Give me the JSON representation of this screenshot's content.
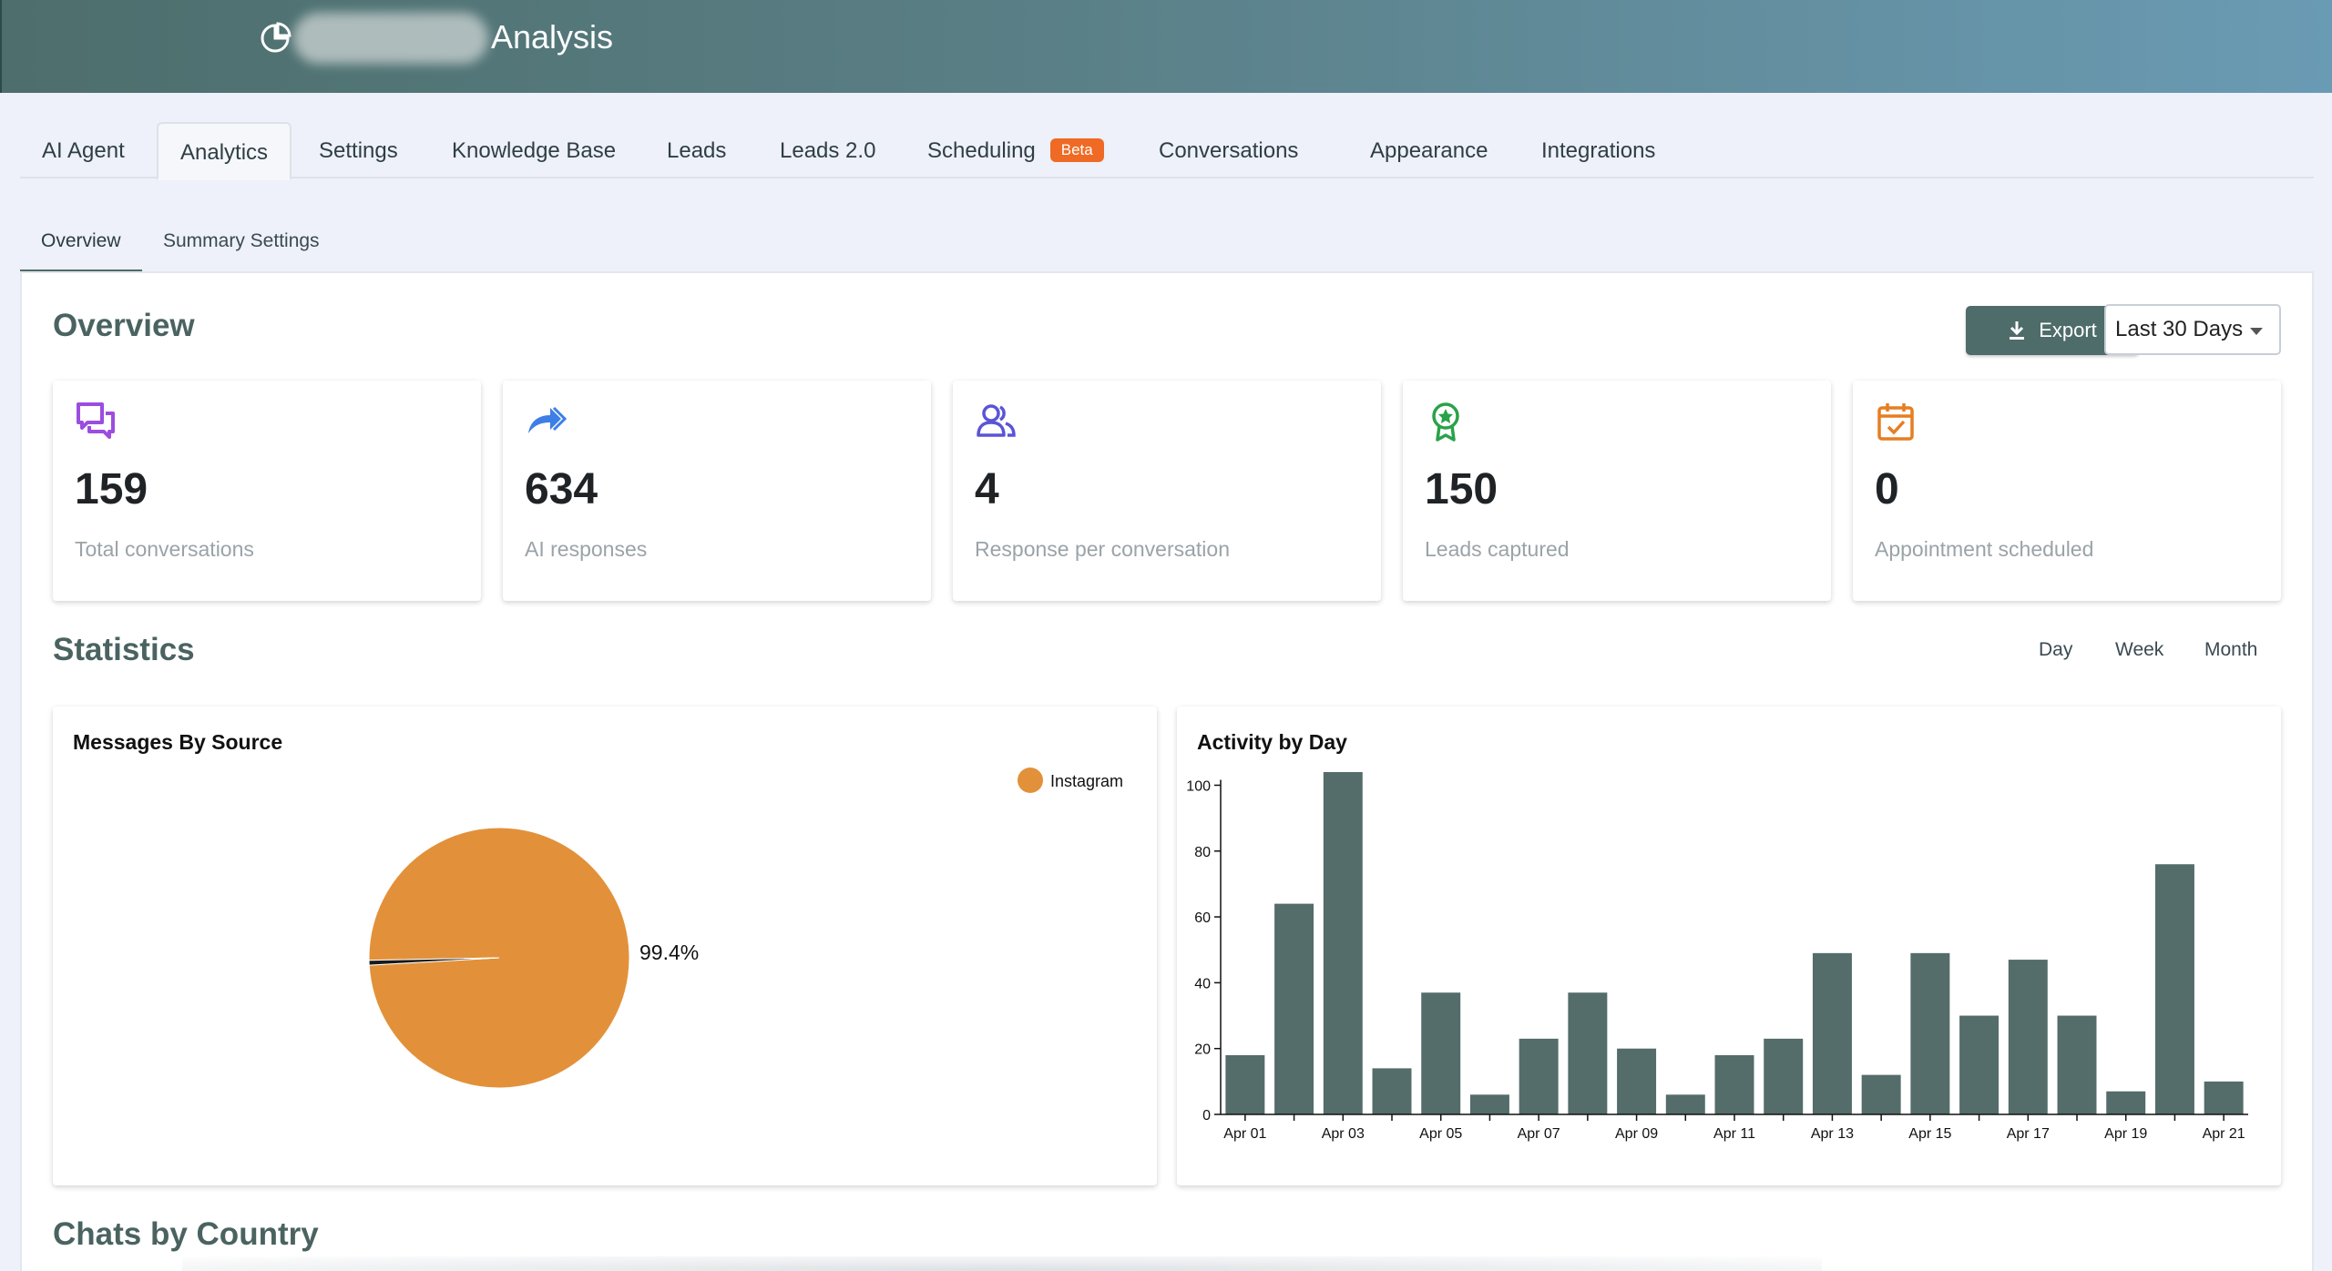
{
  "header": {
    "title": "Analysis",
    "icon": "pie-chart-icon"
  },
  "tabs": [
    {
      "label": "AI Agent"
    },
    {
      "label": "Analytics"
    },
    {
      "label": "Settings"
    },
    {
      "label": "Knowledge Base"
    },
    {
      "label": "Leads"
    },
    {
      "label": "Leads 2.0"
    },
    {
      "label": "Scheduling",
      "badge": "Beta"
    },
    {
      "label": "Conversations"
    },
    {
      "label": "Appearance"
    },
    {
      "label": "Integrations"
    }
  ],
  "subtabs": [
    {
      "label": "Overview"
    },
    {
      "label": "Summary Settings"
    }
  ],
  "overview": {
    "title": "Overview",
    "export_label": "Export",
    "range_label": "Last 30 Days",
    "stats": [
      {
        "value": "159",
        "label": "Total conversations",
        "icon": "chat-bubbles-icon",
        "color": "#9b4de0"
      },
      {
        "value": "634",
        "label": "AI responses",
        "icon": "forward-arrows-icon",
        "color": "#3d7fe6"
      },
      {
        "value": "4",
        "label": "Response per conversation",
        "icon": "users-icon",
        "color": "#5a55d6"
      },
      {
        "value": "150",
        "label": "Leads captured",
        "icon": "award-ribbon-icon",
        "color": "#2aa24a"
      },
      {
        "value": "0",
        "label": "Appointment scheduled",
        "icon": "calendar-check-icon",
        "color": "#e67e22"
      }
    ]
  },
  "statistics": {
    "title": "Statistics",
    "periods": [
      "Day",
      "Week",
      "Month"
    ]
  },
  "chats_by_country": {
    "title": "Chats by Country"
  },
  "colors": {
    "accent": "#4d6c6a",
    "pie": "#e2913a",
    "bar": "#546c6a",
    "badge": "#ef6a24"
  },
  "chart_data": [
    {
      "type": "pie",
      "title": "Messages By Source",
      "legend": [
        "Instagram"
      ],
      "legend_position": "top-right",
      "slices": [
        {
          "name": "Instagram",
          "value": 99.4,
          "color": "#e2913a"
        },
        {
          "name": "",
          "value": 0.6,
          "color": "#1a1a1a"
        }
      ],
      "data_labels": [
        "99.4%"
      ]
    },
    {
      "type": "bar",
      "title": "Activity by Day",
      "categories": [
        "Apr 01",
        "Apr 02",
        "Apr 03",
        "Apr 04",
        "Apr 05",
        "Apr 06",
        "Apr 07",
        "Apr 08",
        "Apr 09",
        "Apr 10",
        "Apr 11",
        "Apr 12",
        "Apr 13",
        "Apr 14",
        "Apr 15",
        "Apr 16",
        "Apr 17",
        "Apr 18",
        "Apr 19",
        "Apr 20",
        "Apr 21"
      ],
      "tick_labels": [
        "Apr 01",
        "Apr 03",
        "Apr 05",
        "Apr 07",
        "Apr 09",
        "Apr 11",
        "Apr 13",
        "Apr 15",
        "Apr 17",
        "Apr 19",
        "Apr 21"
      ],
      "values": [
        18,
        64,
        104,
        14,
        37,
        6,
        23,
        37,
        20,
        6,
        18,
        23,
        49,
        12,
        49,
        30,
        47,
        30,
        7,
        76,
        10
      ],
      "yticks": [
        0,
        20,
        40,
        60,
        80,
        100
      ],
      "ylim": [
        0,
        104
      ],
      "grid": false
    }
  ]
}
